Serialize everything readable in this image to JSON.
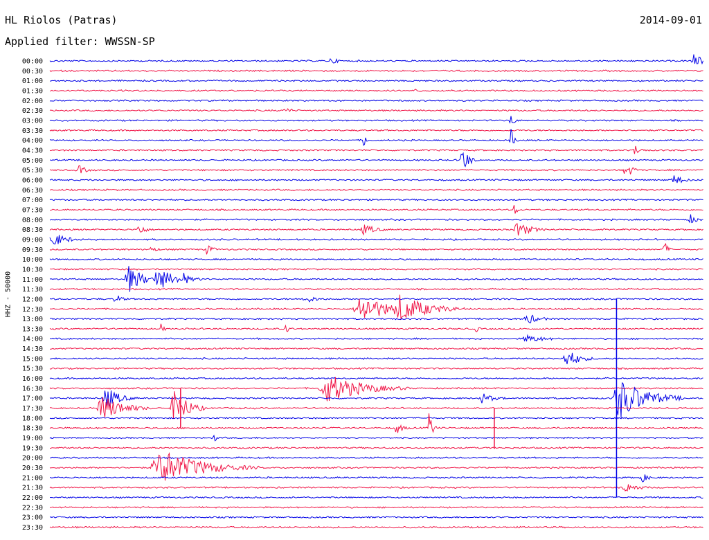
{
  "header": {
    "station": "HL Riolos (Patras)",
    "date": "2014-09-01",
    "filter_label": "Applied filter: WWSSN-SP"
  },
  "chart_data": {
    "type": "helicorder",
    "title": "HL Riolos (Patras)",
    "ylabel": "HHZ - 50000",
    "row_labels": [
      "00:00",
      "00:30",
      "01:00",
      "01:30",
      "02:00",
      "02:30",
      "03:00",
      "03:30",
      "04:00",
      "04:30",
      "05:00",
      "05:30",
      "06:00",
      "06:30",
      "07:00",
      "07:30",
      "08:00",
      "08:30",
      "09:00",
      "09:30",
      "10:00",
      "10:30",
      "11:00",
      "11:30",
      "12:00",
      "12:30",
      "13:00",
      "13:30",
      "14:00",
      "14:30",
      "15:00",
      "15:30",
      "16:00",
      "16:30",
      "17:00",
      "17:30",
      "18:00",
      "18:30",
      "19:00",
      "19:30",
      "20:00",
      "20:30",
      "21:00",
      "21:30",
      "22:00",
      "22:30",
      "23:00",
      "23:30"
    ],
    "colors": [
      "#0000e6",
      "#f01446"
    ],
    "events": [
      {
        "row": 0,
        "x": 0.43,
        "amp": 6,
        "dur": 0.01
      },
      {
        "row": 0,
        "x": 0.985,
        "amp": 10,
        "dur": 0.015
      },
      {
        "row": 3,
        "x": 0.56,
        "amp": 6,
        "dur": 0.005
      },
      {
        "row": 5,
        "x": 0.36,
        "amp": 6,
        "dur": 0.01
      },
      {
        "row": 6,
        "x": 0.705,
        "amp": 12,
        "dur": 0.005
      },
      {
        "row": 8,
        "x": 0.48,
        "amp": 12,
        "dur": 0.005
      },
      {
        "row": 8,
        "x": 0.705,
        "amp": 18,
        "dur": 0.005
      },
      {
        "row": 9,
        "x": 0.895,
        "amp": 8,
        "dur": 0.01
      },
      {
        "row": 10,
        "x": 0.63,
        "amp": 22,
        "dur": 0.01
      },
      {
        "row": 11,
        "x": 0.045,
        "amp": 8,
        "dur": 0.01
      },
      {
        "row": 11,
        "x": 0.88,
        "amp": 14,
        "dur": 0.01
      },
      {
        "row": 12,
        "x": 0.955,
        "amp": 8,
        "dur": 0.015
      },
      {
        "row": 15,
        "x": 0.71,
        "amp": 10,
        "dur": 0.005
      },
      {
        "row": 16,
        "x": 0.98,
        "amp": 8,
        "dur": 0.01
      },
      {
        "row": 17,
        "x": 0.135,
        "amp": 10,
        "dur": 0.01
      },
      {
        "row": 17,
        "x": 0.48,
        "amp": 8,
        "dur": 0.02
      },
      {
        "row": 17,
        "x": 0.715,
        "amp": 12,
        "dur": 0.02
      },
      {
        "row": 17,
        "x": 0.845,
        "amp": 10,
        "dur": 0.005
      },
      {
        "row": 18,
        "x": 0.0,
        "amp": 14,
        "dur": 0.02
      },
      {
        "row": 19,
        "x": 0.155,
        "amp": 5,
        "dur": 0.01
      },
      {
        "row": 19,
        "x": 0.24,
        "amp": 8,
        "dur": 0.01
      },
      {
        "row": 19,
        "x": 0.94,
        "amp": 14,
        "dur": 0.005
      },
      {
        "row": 22,
        "x": 0.12,
        "amp": 22,
        "dur": 0.02
      },
      {
        "row": 22,
        "x": 0.165,
        "amp": 16,
        "dur": 0.03
      },
      {
        "row": 22,
        "x": 0.205,
        "amp": 10,
        "dur": 0.01
      },
      {
        "row": 24,
        "x": 0.1,
        "amp": 8,
        "dur": 0.01
      },
      {
        "row": 24,
        "x": 0.39,
        "amp": 6,
        "dur": 0.02
      },
      {
        "row": 25,
        "x": 0.475,
        "amp": 22,
        "dur": 0.04
      },
      {
        "row": 25,
        "x": 0.535,
        "amp": 22,
        "dur": 0.04
      },
      {
        "row": 26,
        "x": 0.73,
        "amp": 8,
        "dur": 0.02
      },
      {
        "row": 27,
        "x": 0.17,
        "amp": 8,
        "dur": 0.005
      },
      {
        "row": 27,
        "x": 0.36,
        "amp": 10,
        "dur": 0.005
      },
      {
        "row": 27,
        "x": 0.65,
        "amp": 8,
        "dur": 0.005
      },
      {
        "row": 28,
        "x": 0.73,
        "amp": 6,
        "dur": 0.03
      },
      {
        "row": 30,
        "x": 0.79,
        "amp": 14,
        "dur": 0.02
      },
      {
        "row": 33,
        "x": 0.425,
        "amp": 22,
        "dur": 0.05
      },
      {
        "row": 34,
        "x": 0.085,
        "amp": 18,
        "dur": 0.02
      },
      {
        "row": 34,
        "x": 0.66,
        "amp": 8,
        "dur": 0.02
      },
      {
        "row": 34,
        "x": 0.87,
        "amp": 32,
        "dur": 0.04
      },
      {
        "row": 34,
        "x": 0.92,
        "amp": 18,
        "dur": 0.005
      },
      {
        "row": 35,
        "x": 0.08,
        "amp": 20,
        "dur": 0.03
      },
      {
        "row": 35,
        "x": 0.19,
        "amp": 30,
        "dur": 0.02
      },
      {
        "row": 37,
        "x": 0.53,
        "amp": 10,
        "dur": 0.01
      },
      {
        "row": 37,
        "x": 0.58,
        "amp": 26,
        "dur": 0.005
      },
      {
        "row": 38,
        "x": 0.25,
        "amp": 8,
        "dur": 0.005
      },
      {
        "row": 41,
        "x": 0.17,
        "amp": 26,
        "dur": 0.06
      },
      {
        "row": 42,
        "x": 0.905,
        "amp": 8,
        "dur": 0.01
      },
      {
        "row": 43,
        "x": 0.88,
        "amp": 8,
        "dur": 0.02
      }
    ],
    "tall_spikes": [
      {
        "x": 0.867,
        "from_row": 24,
        "to_row": 44,
        "color_row": 34
      },
      {
        "x": 0.2,
        "from_row": 33,
        "to_row": 37,
        "color_row": 35
      },
      {
        "x": 0.68,
        "from_row": 35,
        "to_row": 39,
        "color_row": 37
      }
    ],
    "grid": false
  }
}
